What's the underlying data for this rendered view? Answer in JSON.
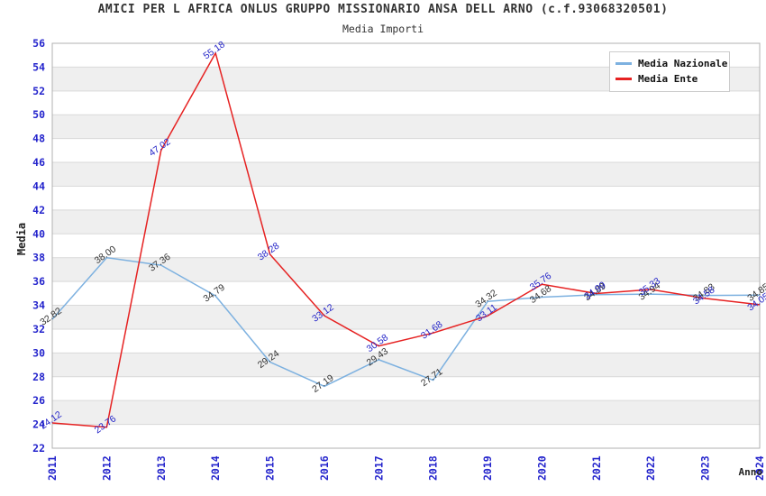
{
  "header": {
    "title": "AMICI PER L AFRICA ONLUS GRUPPO MISSIONARIO ANSA DELL ARNO (c.f.93068320501)",
    "subtitle": "Media Importi"
  },
  "axes": {
    "y_label": "Media",
    "x_label": "Anno"
  },
  "legend": {
    "items": [
      {
        "label": "Media Nazionale",
        "color": "#7db1e0"
      },
      {
        "label": "Media Ente",
        "color": "#e62222"
      }
    ]
  },
  "chart_data": {
    "type": "line",
    "title": "Media Importi",
    "xlabel": "Anno",
    "ylabel": "Media",
    "x": [
      2011,
      2012,
      2013,
      2014,
      2015,
      2016,
      2017,
      2018,
      2019,
      2020,
      2021,
      2022,
      2023,
      2024
    ],
    "ylim": [
      22,
      56
    ],
    "ytick_step": 2,
    "grid": "horizontal-alternating-bands",
    "legend_position": "top-right",
    "series": [
      {
        "name": "Media Nazionale",
        "color": "#7db1e0",
        "label_color": "#333333",
        "values": [
          32.82,
          38.0,
          37.36,
          34.79,
          29.24,
          27.19,
          29.43,
          27.71,
          34.32,
          34.68,
          34.89,
          34.94,
          34.83,
          34.85
        ]
      },
      {
        "name": "Media Ente",
        "color": "#e62222",
        "label_color": "#2424c8",
        "values": [
          24.12,
          23.76,
          47.02,
          55.18,
          38.28,
          33.12,
          30.58,
          31.68,
          33.11,
          35.76,
          34.99,
          35.33,
          34.58,
          34.05
        ]
      }
    ]
  },
  "colors": {
    "background": "#ffffff",
    "band_fill": "#efefef",
    "gridline": "#d9d9d9",
    "plot_border": "#b0b0b0",
    "tick_label": "#2424cc",
    "title_text": "#333333"
  }
}
